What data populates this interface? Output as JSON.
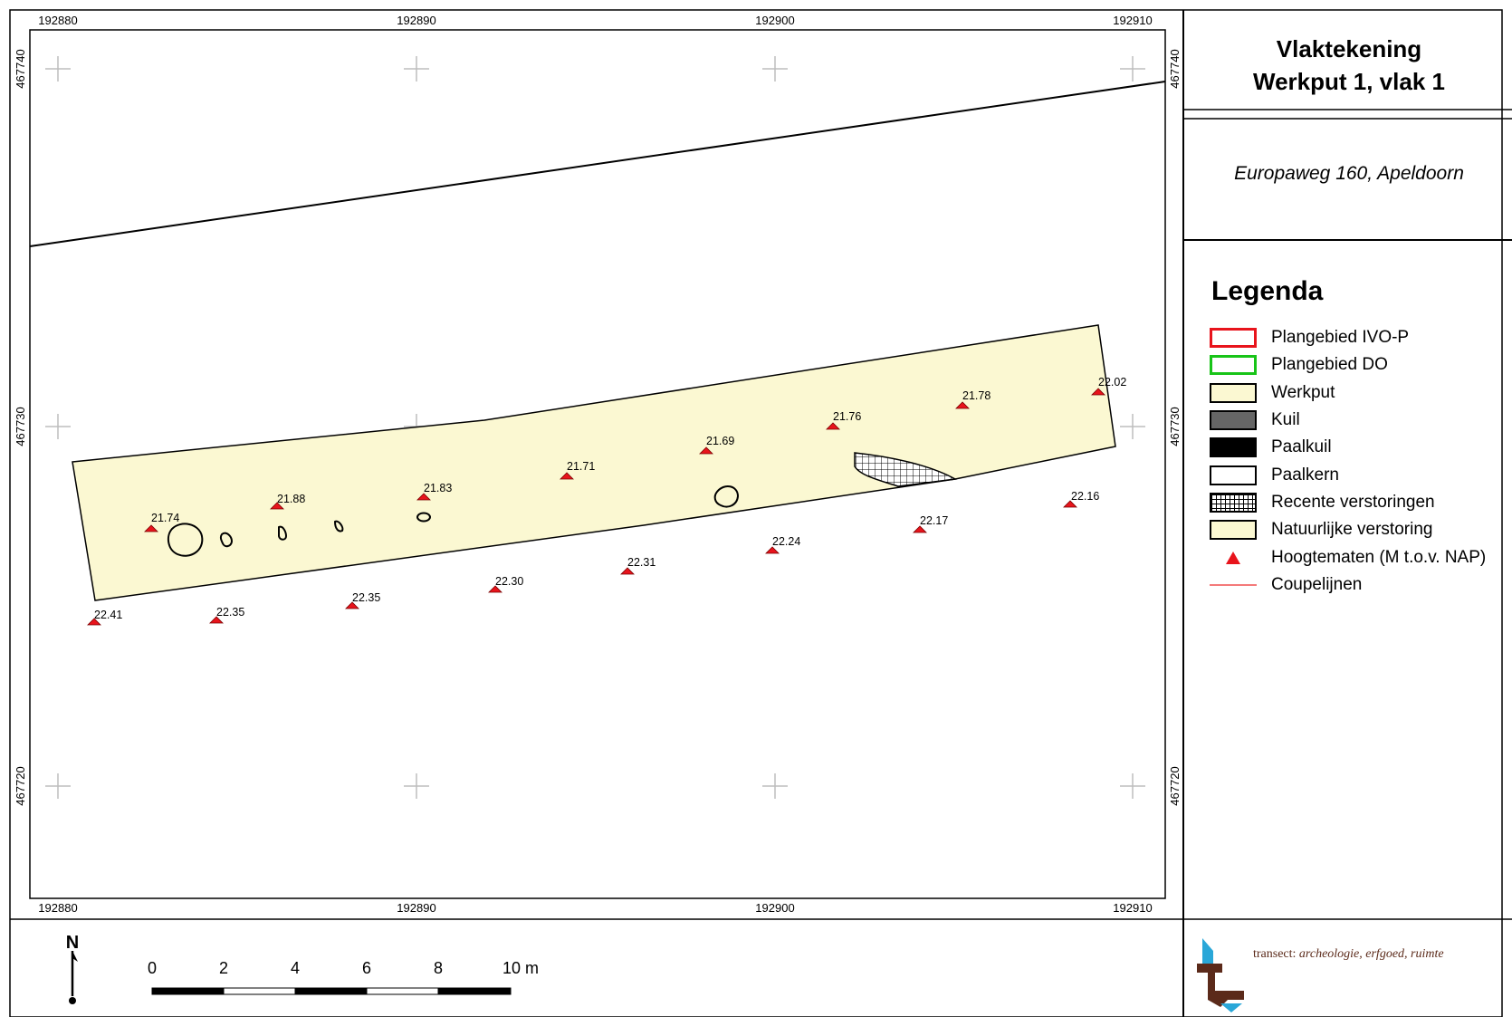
{
  "title_line1": "Vlaktekening",
  "title_line2": "Werkput 1, vlak 1",
  "address": "Europaweg 160, Apeldoorn",
  "legend": {
    "title": "Legenda",
    "items": [
      {
        "label": "Plangebied IVO-P",
        "kind": "outline",
        "color": "#e8141c"
      },
      {
        "label": "Plangebied DO",
        "kind": "outline",
        "color": "#18c418"
      },
      {
        "label": "Werkput",
        "kind": "fill",
        "color": "#fbf8d2"
      },
      {
        "label": "Kuil",
        "kind": "fill",
        "color": "#666666"
      },
      {
        "label": "Paalkuil",
        "kind": "fill",
        "color": "#000000"
      },
      {
        "label": "Paalkern",
        "kind": "fill",
        "color": "#ffffff"
      },
      {
        "label": "Recente verstoringen",
        "kind": "hatch",
        "color": "#000000"
      },
      {
        "label": "Natuurlijke verstoring",
        "kind": "fill",
        "color": "#fbf8d2"
      },
      {
        "label": "Hoogtematen (M t.o.v. NAP)",
        "kind": "triangle",
        "color": "#e8141c"
      },
      {
        "label": "Coupelijnen",
        "kind": "line",
        "color": "#f47a7a"
      }
    ]
  },
  "map": {
    "x_ticks": [
      "192880",
      "192890",
      "192900",
      "192910"
    ],
    "y_ticks": [
      "467740",
      "467730",
      "467720"
    ],
    "heights": [
      "21.74",
      "21.88",
      "21.83",
      "21.71",
      "21.69",
      "21.76",
      "21.78",
      "22.02",
      "22.16",
      "22.17",
      "22.24",
      "22.31",
      "22.30",
      "22.35",
      "22.35",
      "22.41"
    ]
  },
  "scalebar": {
    "north": "N",
    "labels": [
      "0",
      "2",
      "4",
      "6",
      "8",
      "10 m"
    ]
  },
  "logo": {
    "name": "transect:",
    "tagline": "archeologie, erfgoed, ruimte"
  }
}
